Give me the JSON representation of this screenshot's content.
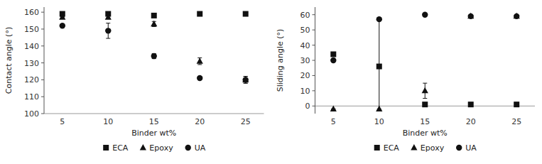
{
  "chart_data": [
    {
      "type": "scatter",
      "xlabel": "Binder wt%",
      "ylabel": "Contact angle (°)",
      "x": [
        5,
        10,
        15,
        20,
        25
      ],
      "xlim": [
        3,
        27
      ],
      "xticks": [
        5,
        10,
        15,
        20,
        25
      ],
      "ylim": [
        100,
        163
      ],
      "yticks": [
        100,
        110,
        120,
        130,
        140,
        150,
        160
      ],
      "color": "#111111",
      "legend": "bottom",
      "hline_y": 100,
      "series": [
        {
          "name": "ECA",
          "marker": "square",
          "values": [
            159,
            159,
            158,
            159,
            159
          ],
          "errors": [
            0.3,
            0.3,
            1.0,
            0.3,
            0.3
          ]
        },
        {
          "name": "Epoxy",
          "marker": "triangle",
          "values": [
            157,
            157,
            153,
            131,
            120
          ],
          "errors": [
            0.3,
            1.0,
            1.5,
            2.0,
            2.0
          ]
        },
        {
          "name": "UA",
          "marker": "circle",
          "values": [
            152,
            149,
            134,
            121,
            120
          ],
          "errors": [
            0.3,
            4.5,
            1.5,
            1.0,
            2.0
          ]
        }
      ]
    },
    {
      "type": "scatter",
      "xlabel": "Binder wt%",
      "ylabel": "Sliding angle (°)",
      "x": [
        5,
        10,
        15,
        20,
        25
      ],
      "xlim": [
        3,
        27
      ],
      "xticks": [
        5,
        10,
        15,
        20,
        25
      ],
      "ylim": [
        -5,
        65
      ],
      "yticks": [
        0,
        10,
        20,
        30,
        40,
        50,
        60
      ],
      "color": "#111111",
      "legend": "bottom",
      "hline_y": 0,
      "series": [
        {
          "name": "ECA",
          "marker": "square",
          "values": [
            34,
            26,
            1,
            1,
            1
          ],
          "errors": [
            0,
            0,
            0.5,
            0.3,
            0.3
          ]
        },
        {
          "name": "Epoxy",
          "marker": "triangle",
          "values": [
            -2,
            -2,
            10,
            59,
            59
          ],
          "errors_lo": [
            0,
            0,
            5,
            0,
            0
          ],
          "errors_hi": [
            0,
            59,
            5,
            0,
            0
          ]
        },
        {
          "name": "UA",
          "marker": "circle",
          "values": [
            30,
            57,
            60,
            59,
            59
          ],
          "errors": [
            0,
            0,
            0,
            0,
            0
          ]
        }
      ]
    }
  ]
}
